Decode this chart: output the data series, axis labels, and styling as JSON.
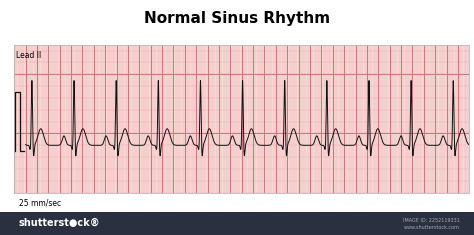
{
  "title": "Normal Sinus Rhythm",
  "title_fontsize": 11,
  "title_fontweight": "bold",
  "lead_label": "Lead II",
  "speed_label": "25 mm/sec",
  "bg_color": "#f9d8d8",
  "grid_minor_color": "#e8aaaa",
  "grid_major_color": "#cc7777",
  "ecg_color": "#111111",
  "border_color": "#bbbbbb",
  "outer_bg": "#ffffff",
  "shutterstock_bar_color": "#2a3040",
  "heart_rate_bpm": 81,
  "duration_sec": 8.0,
  "r_amp": 0.55,
  "p_amp": 0.08,
  "q_amp": -0.04,
  "s_amp": -0.1,
  "t_amp": 0.14,
  "baseline": 0.0
}
